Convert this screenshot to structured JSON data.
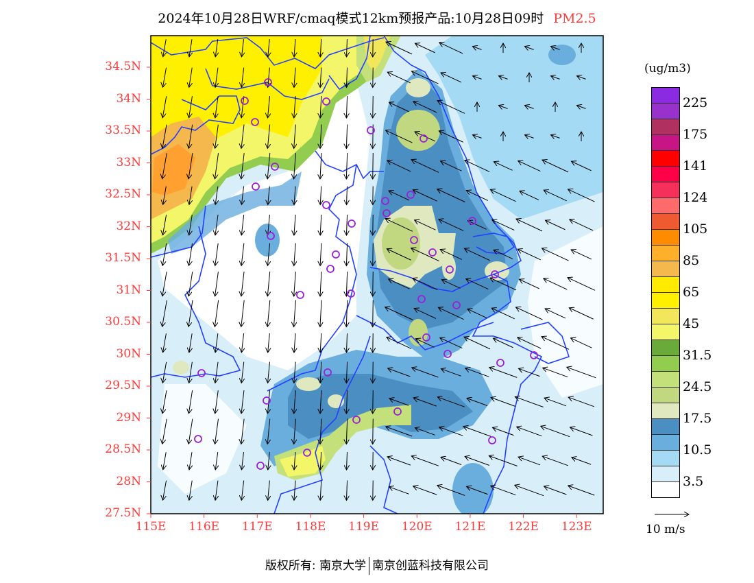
{
  "title": {
    "main": "2024年10月28日WRF/cmaq模式12km预报产品:10月28日09时",
    "species": "PM2.5"
  },
  "axes": {
    "lat_labels": [
      "34.5N",
      "34N",
      "33.5N",
      "33N",
      "32.5N",
      "32N",
      "31.5N",
      "31N",
      "30.5N",
      "30N",
      "29.5N",
      "29N",
      "28.5N",
      "28N",
      "27.5N"
    ],
    "lon_labels": [
      "115E",
      "116E",
      "117E",
      "118E",
      "119E",
      "120E",
      "121E",
      "122E",
      "123E"
    ],
    "lat_range": [
      27.5,
      35.0
    ],
    "lon_range": [
      115.0,
      123.5
    ]
  },
  "colorbar": {
    "unit": "(ug/m3)",
    "labels": [
      "225",
      "175",
      "141",
      "124",
      "105",
      "85",
      "65",
      "45",
      "31.5",
      "24.5",
      "17.5",
      "10.5",
      "3.5"
    ],
    "colors": [
      "#8a2be2",
      "#9932cc",
      "#b03060",
      "#c71585",
      "#ff0000",
      "#ff0048",
      "#f5305a",
      "#ff6a6a",
      "#f05a30",
      "#ff8c00",
      "#ffb02a",
      "#f5b84c",
      "#ffea00",
      "#fff000",
      "#f2e65a",
      "#f4f66a",
      "#6aaa3a",
      "#92cd50",
      "#c4e07a",
      "#c2d880",
      "#e0e8c0",
      "#4a8ec2",
      "#6aaede",
      "#a4daf4",
      "#d8eef8",
      "#ffffff"
    ]
  },
  "wind_scale": {
    "label": "10 m/s"
  },
  "colors": {
    "boundary": "#2440ff",
    "city_marker": "#9a20d8",
    "axis_label": "#ff3a3a"
  },
  "footer": {
    "left": "版权所有: 南京大学",
    "right": "南京创蓝科技有限公司"
  }
}
